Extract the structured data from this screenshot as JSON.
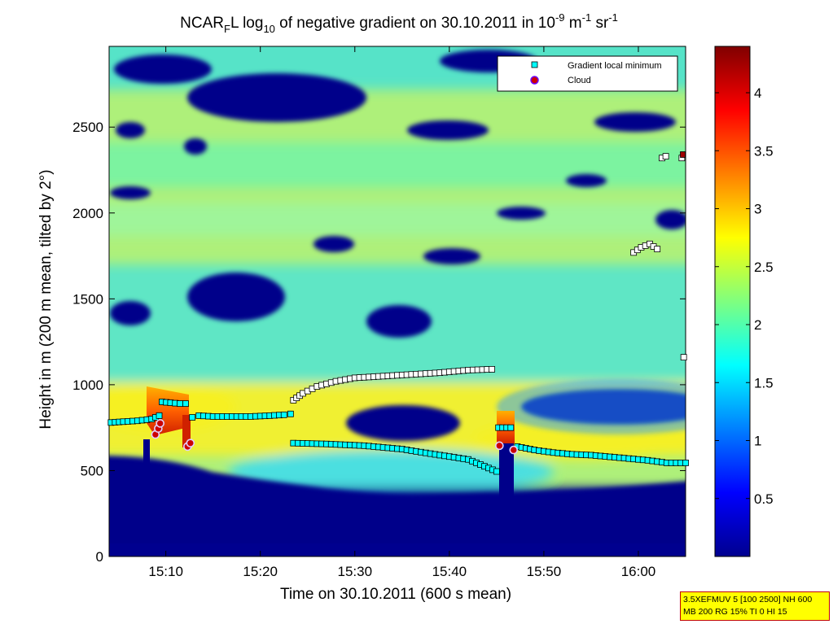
{
  "chart_data": {
    "type": "heatmap",
    "title": {
      "prefix": "NCAR",
      "prefix_sub": "F",
      "middle": "L log",
      "middle_sub": "10",
      "text": " of negative gradient on 30.10.2011 in 10",
      "exp1": "-9",
      "unit1": " m",
      "exp2": "-1",
      "unit2": " sr",
      "exp3": "-1"
    },
    "xlabel": "Time on 30.10.2011 (600 s mean)",
    "ylabel": "Height in m (200 m mean, tilted by 2°)",
    "x_ticks": [
      "15:10",
      "15:20",
      "15:30",
      "15:40",
      "15:50",
      "16:00"
    ],
    "x_tick_minutes": [
      910,
      920,
      930,
      940,
      950,
      960
    ],
    "xlim_minutes": [
      904,
      965
    ],
    "y_ticks": [
      0,
      500,
      1000,
      1500,
      2000,
      2500
    ],
    "ylim": [
      0,
      2970
    ],
    "colorbar": {
      "ticks": [
        "0.5",
        "1",
        "1.5",
        "2",
        "2.5",
        "3",
        "3.5",
        "4"
      ],
      "tick_values": [
        0.5,
        1,
        1.5,
        2,
        2.5,
        3,
        3.5,
        4
      ],
      "range": [
        0,
        4.4
      ],
      "colormap": "jet"
    },
    "legend": {
      "position": "top-right",
      "entries": [
        {
          "label": "Gradient local minimum",
          "marker": "square",
          "color": "#00ffff"
        },
        {
          "label": "Cloud",
          "marker": "circle",
          "color": "#cc0000"
        }
      ]
    },
    "series": [
      {
        "name": "Gradient local minimum",
        "marker": "square",
        "color": "#00ffff",
        "segments": [
          {
            "x": [
              904.2,
              905.5,
              907,
              908.5,
              909.3
            ],
            "y": [
              780,
              785,
              790,
              800,
              820
            ]
          },
          {
            "x": [
              909.6,
              910.5,
              911.5,
              912.1
            ],
            "y": [
              900,
              895,
              890,
              890
            ]
          },
          {
            "x": [
              912.8,
              913.5,
              915,
              917,
              919,
              921,
              922.5,
              923.2
            ],
            "y": [
              810,
              820,
              815,
              815,
              815,
              820,
              825,
              830
            ]
          },
          {
            "x": [
              923.5,
              927,
              931,
              935,
              939,
              942,
              945
            ],
            "y": [
              660,
              655,
              645,
              625,
              590,
              565,
              495
            ]
          },
          {
            "x": [
              945.2,
              946.5
            ],
            "y": [
              750,
              750
            ]
          },
          {
            "x": [
              947.2,
              949,
              951,
              953,
              955,
              957,
              959,
              961,
              963,
              965
            ],
            "y": [
              640,
              620,
              605,
              595,
              590,
              580,
              570,
              560,
              545,
              545
            ]
          }
        ]
      },
      {
        "name": "",
        "marker": "square",
        "color": "#ffffff",
        "segments": [
          {
            "x": [
              923.5,
              924.5,
              926,
              928,
              930,
              933,
              936,
              939,
              942,
              944.5
            ],
            "y": [
              910,
              950,
              990,
              1020,
              1040,
              1050,
              1060,
              1070,
              1085,
              1090
            ]
          },
          {
            "x": [
              959.5,
              960.3,
              961.2,
              962
            ],
            "y": [
              1770,
              1800,
              1820,
              1790
            ]
          },
          {
            "x": [
              962.5,
              962.9
            ],
            "y": [
              2320,
              2330
            ]
          },
          {
            "x": [
              964.6
            ],
            "y": [
              2320
            ]
          },
          {
            "x": [
              964.8
            ],
            "y": [
              1160
            ]
          }
        ]
      },
      {
        "name": "Cloud",
        "marker": "circle",
        "color": "#cc0000",
        "points": {
          "x": [
            908.9,
            909.2,
            909.4,
            912.3,
            912.6,
            945.3,
            946.8
          ],
          "y": [
            710,
            745,
            775,
            640,
            660,
            645,
            620
          ]
        }
      }
    ]
  },
  "info_box": {
    "line1": "3.5XEFMUV 5 [100 2500] NH 600",
    "line2": "MB 200 RG 15% TI 0 HI 15"
  }
}
